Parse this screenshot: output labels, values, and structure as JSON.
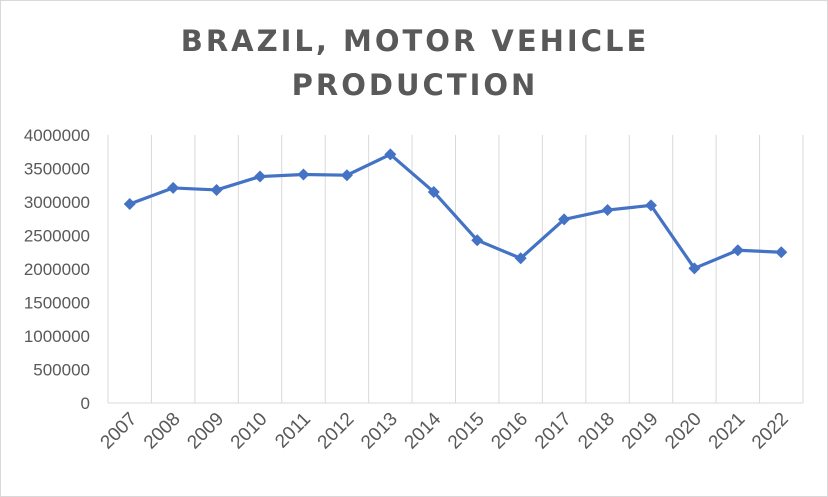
{
  "chart_data": {
    "type": "line",
    "title": "BRAZIL, MOTOR VEHICLE PRODUCTION",
    "xlabel": "",
    "ylabel": "",
    "categories": [
      "2007",
      "2008",
      "2009",
      "2010",
      "2011",
      "2012",
      "2013",
      "2014",
      "2015",
      "2016",
      "2017",
      "2018",
      "2019",
      "2020",
      "2021",
      "2022"
    ],
    "series": [
      {
        "values": [
          2970000,
          3210000,
          3180000,
          3380000,
          3410000,
          3400000,
          3710000,
          3150000,
          2430000,
          2160000,
          2740000,
          2880000,
          2950000,
          2010000,
          2280000,
          2250000
        ],
        "color": "#4472c4",
        "marker": "diamond"
      }
    ],
    "ylim": [
      0,
      4000000
    ],
    "yticks": [
      "0",
      "500000",
      "1000000",
      "1500000",
      "2000000",
      "2500000",
      "3000000",
      "3500000",
      "4000000"
    ],
    "grid": "vertical",
    "legend": "none"
  }
}
